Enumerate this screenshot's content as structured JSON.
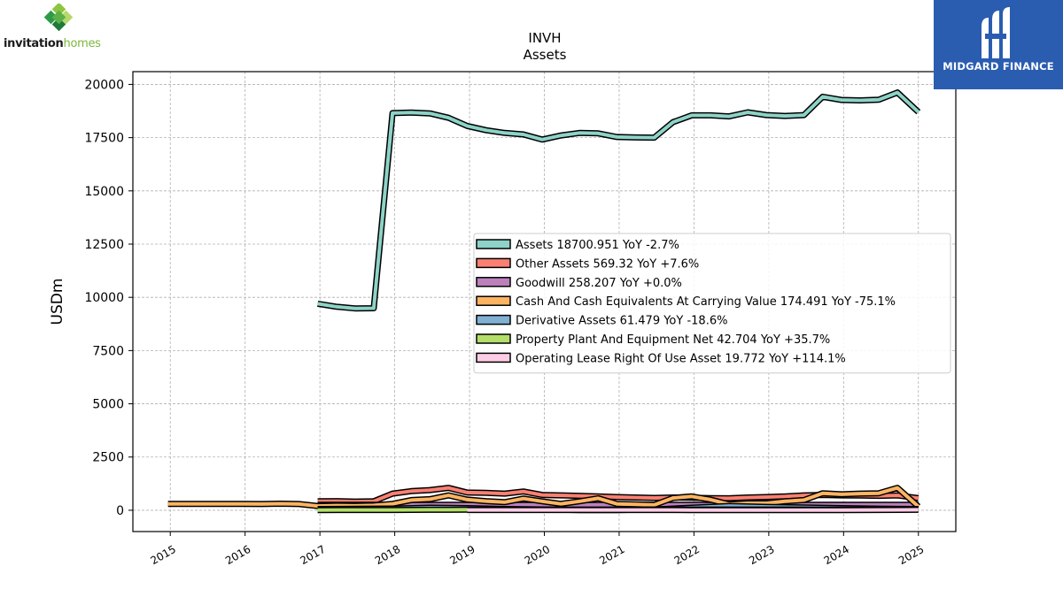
{
  "brand_left": {
    "name_bold": "invitation",
    "name_light": "homes",
    "color_green": "#7ab83c",
    "color_dark_green": "#2e9a47"
  },
  "brand_right": {
    "name": "MIDGARD FINANCE",
    "bg_color": "#2a5db0"
  },
  "chart_data": {
    "type": "line",
    "title": "INVH",
    "subtitle": "Assets",
    "ylabel": "USDm",
    "xlabel": "",
    "ylim": [
      -1000,
      20600
    ],
    "xlim": [
      2014.5,
      2025.5
    ],
    "yticks": [
      0,
      2500,
      5000,
      7500,
      10000,
      12500,
      15000,
      17500,
      20000
    ],
    "xticks": [
      "2015",
      "2016",
      "2017",
      "2018",
      "2019",
      "2020",
      "2021",
      "2022",
      "2023",
      "2024",
      "2025"
    ],
    "grid": true,
    "legend_position": "center-right",
    "series": [
      {
        "name": "Assets",
        "legend": "Assets  18700.951 YoY -2.7%",
        "color": "#8dd3c7",
        "points": [
          [
            2016.97,
            9700
          ],
          [
            2017.22,
            9560
          ],
          [
            2017.47,
            9480
          ],
          [
            2017.72,
            9490
          ],
          [
            2017.97,
            18650
          ],
          [
            2018.22,
            18680
          ],
          [
            2018.47,
            18640
          ],
          [
            2018.72,
            18430
          ],
          [
            2018.97,
            18050
          ],
          [
            2019.22,
            17850
          ],
          [
            2019.47,
            17720
          ],
          [
            2019.72,
            17650
          ],
          [
            2019.97,
            17410
          ],
          [
            2020.22,
            17600
          ],
          [
            2020.47,
            17720
          ],
          [
            2020.72,
            17700
          ],
          [
            2020.97,
            17530
          ],
          [
            2021.22,
            17510
          ],
          [
            2021.47,
            17500
          ],
          [
            2021.72,
            18230
          ],
          [
            2021.97,
            18550
          ],
          [
            2022.22,
            18550
          ],
          [
            2022.47,
            18500
          ],
          [
            2022.72,
            18690
          ],
          [
            2022.97,
            18560
          ],
          [
            2023.22,
            18520
          ],
          [
            2023.47,
            18560
          ],
          [
            2023.72,
            19420
          ],
          [
            2023.97,
            19270
          ],
          [
            2024.22,
            19250
          ],
          [
            2024.47,
            19280
          ],
          [
            2024.72,
            19620
          ],
          [
            2025.0,
            18700
          ]
        ]
      },
      {
        "name": "Other Assets",
        "legend": "Other Assets  569.32 YoY +7.6%",
        "color": "#fb8072",
        "points": [
          [
            2016.97,
            420
          ],
          [
            2017.22,
            430
          ],
          [
            2017.47,
            410
          ],
          [
            2017.72,
            420
          ],
          [
            2017.97,
            780
          ],
          [
            2018.22,
            900
          ],
          [
            2018.47,
            950
          ],
          [
            2018.72,
            1050
          ],
          [
            2018.97,
            830
          ],
          [
            2019.22,
            820
          ],
          [
            2019.47,
            780
          ],
          [
            2019.72,
            880
          ],
          [
            2019.97,
            720
          ],
          [
            2020.22,
            700
          ],
          [
            2020.47,
            680
          ],
          [
            2020.72,
            650
          ],
          [
            2020.97,
            620
          ],
          [
            2021.22,
            600
          ],
          [
            2021.47,
            580
          ],
          [
            2021.72,
            600
          ],
          [
            2021.97,
            590
          ],
          [
            2022.22,
            570
          ],
          [
            2022.47,
            560
          ],
          [
            2022.72,
            600
          ],
          [
            2022.97,
            620
          ],
          [
            2023.22,
            650
          ],
          [
            2023.47,
            700
          ],
          [
            2023.72,
            720
          ],
          [
            2023.97,
            700
          ],
          [
            2024.22,
            690
          ],
          [
            2024.47,
            680
          ],
          [
            2024.72,
            700
          ],
          [
            2025.0,
            569
          ]
        ]
      },
      {
        "name": "Goodwill",
        "legend": "Goodwill  258.207 YoY +0.0%",
        "color": "#bc80bd",
        "points": [
          [
            2016.97,
            258
          ],
          [
            2017.72,
            258
          ],
          [
            2017.97,
            258
          ],
          [
            2025.0,
            258
          ]
        ]
      },
      {
        "name": "Cash And Cash Equivalents At Carrying Value",
        "legend": "Cash And Cash Equivalents At Carrying Value  174.491 YoY -75.1%",
        "color": "#fdb462",
        "points": [
          [
            2014.97,
            300
          ],
          [
            2015.47,
            300
          ],
          [
            2015.97,
            295
          ],
          [
            2016.22,
            290
          ],
          [
            2016.47,
            310
          ],
          [
            2016.72,
            290
          ],
          [
            2016.97,
            200
          ],
          [
            2017.22,
            220
          ],
          [
            2017.47,
            210
          ],
          [
            2017.72,
            230
          ],
          [
            2017.97,
            300
          ],
          [
            2018.22,
            480
          ],
          [
            2018.47,
            520
          ],
          [
            2018.72,
            700
          ],
          [
            2018.97,
            500
          ],
          [
            2019.22,
            430
          ],
          [
            2019.47,
            380
          ],
          [
            2019.72,
            550
          ],
          [
            2019.97,
            420
          ],
          [
            2020.22,
            300
          ],
          [
            2020.47,
            420
          ],
          [
            2020.72,
            560
          ],
          [
            2020.97,
            300
          ],
          [
            2021.22,
            280
          ],
          [
            2021.47,
            250
          ],
          [
            2021.72,
            580
          ],
          [
            2021.97,
            650
          ],
          [
            2022.22,
            500
          ],
          [
            2022.47,
            280
          ],
          [
            2022.72,
            330
          ],
          [
            2022.97,
            330
          ],
          [
            2023.22,
            420
          ],
          [
            2023.47,
            480
          ],
          [
            2023.72,
            800
          ],
          [
            2023.97,
            750
          ],
          [
            2024.22,
            780
          ],
          [
            2024.47,
            800
          ],
          [
            2024.72,
            1050
          ],
          [
            2025.0,
            174
          ]
        ]
      },
      {
        "name": "Derivative Assets",
        "legend": "Derivative Assets  61.479 YoY -18.6%",
        "color": "#80b1d3",
        "points": [
          [
            2016.97,
            60
          ],
          [
            2017.47,
            70
          ],
          [
            2017.97,
            80
          ],
          [
            2018.47,
            120
          ],
          [
            2018.97,
            100
          ],
          [
            2019.47,
            60
          ],
          [
            2019.97,
            40
          ],
          [
            2020.47,
            10
          ],
          [
            2020.97,
            10
          ],
          [
            2021.47,
            40
          ],
          [
            2021.97,
            120
          ],
          [
            2022.47,
            200
          ],
          [
            2022.97,
            160
          ],
          [
            2023.47,
            130
          ],
          [
            2023.97,
            100
          ],
          [
            2024.47,
            75
          ],
          [
            2025.0,
            61
          ]
        ]
      },
      {
        "name": "Property Plant And Equipment Net",
        "legend": "Property Plant And Equipment Net  42.704 YoY +35.7%",
        "color": "#b3de69",
        "points": [
          [
            2016.97,
            10
          ],
          [
            2017.47,
            12
          ],
          [
            2017.97,
            15
          ],
          [
            2018.47,
            20
          ],
          [
            2018.97,
            25
          ],
          [
            2019.47,
            28
          ],
          [
            2019.97,
            30
          ],
          [
            2020.97,
            32
          ],
          [
            2021.97,
            35
          ],
          [
            2022.97,
            36
          ],
          [
            2023.97,
            32
          ],
          [
            2025.0,
            43
          ]
        ]
      },
      {
        "name": "Operating Lease Right Of Use Asset",
        "legend": "Operating Lease Right Of Use Asset  19.772 YoY +114.1%",
        "color": "#fccde5",
        "points": [
          [
            2018.97,
            15
          ],
          [
            2019.97,
            14
          ],
          [
            2020.97,
            12
          ],
          [
            2021.97,
            11
          ],
          [
            2022.97,
            10
          ],
          [
            2023.97,
            9
          ],
          [
            2025.0,
            20
          ]
        ]
      }
    ]
  }
}
